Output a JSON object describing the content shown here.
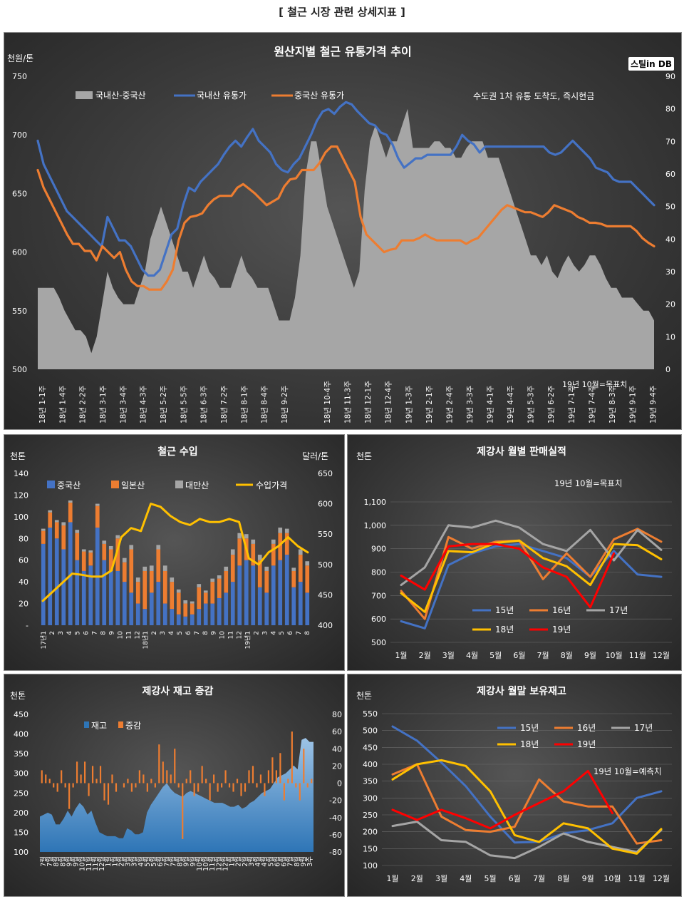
{
  "page_title": "[ 철근 시장 관련 상세지표 ]",
  "chart_data": [
    {
      "id": "c1",
      "type": "line",
      "title": "원산지별 철근 유통가격 추이",
      "brand": "스틸in DB",
      "note": "수도권 1차 유통 도착도, 즉시현금",
      "annotation": "19년 10월=목표치",
      "ylabel_left": "천원/톤",
      "ylim_left": [
        500,
        750
      ],
      "yticks_left": [
        500,
        550,
        600,
        650,
        700,
        750
      ],
      "ylim_right": [
        0,
        90
      ],
      "yticks_right": [
        0,
        10,
        20,
        30,
        40,
        50,
        60,
        70,
        80,
        90
      ],
      "x_tick_labels": [
        "18년 1-1주",
        "18년 1-4주",
        "18년 2-2주",
        "18년 3-1주",
        "18년 3-4주",
        "18년 4-3주",
        "18년 5-2주",
        "18년 5-5주",
        "18년 6-3주",
        "18년 7-2주",
        "18년 8-1주",
        "18년 8-4주",
        "18년 9-2주",
        "18년 10-4주",
        "18년 11-3주",
        "18년 12-1주",
        "18년 12-4주",
        "19년 1-3주",
        "19년 2-1주",
        "19년 2-4주",
        "19년 3-3주",
        "19년 4-1주",
        "19년 4-4주",
        "19년 5-3주",
        "19년 6-2주",
        "19년 7-1주",
        "19년 7-4주",
        "19년 8-3주",
        "19년 9-1주",
        "19년 9-4주"
      ],
      "series": [
        {
          "name": "국내산-중국산",
          "type": "area",
          "axis": "right",
          "color": "#a6a6a6",
          "values": [
            25,
            25,
            25,
            25,
            22,
            18,
            15,
            12,
            12,
            10,
            5,
            10,
            20,
            30,
            25,
            22,
            20,
            20,
            20,
            25,
            30,
            40,
            45,
            50,
            45,
            40,
            35,
            30,
            30,
            25,
            30,
            35,
            30,
            28,
            25,
            25,
            25,
            30,
            35,
            30,
            28,
            25,
            25,
            25,
            20,
            15,
            15,
            15,
            22,
            35,
            60,
            70,
            70,
            60,
            50,
            45,
            40,
            35,
            30,
            25,
            30,
            55,
            70,
            75,
            70,
            65,
            70,
            70,
            75,
            80,
            68,
            68,
            68,
            68,
            70,
            70,
            68,
            68,
            65,
            65,
            68,
            70,
            70,
            70,
            65,
            65,
            65,
            60,
            55,
            50,
            45,
            40,
            35,
            35,
            32,
            35,
            30,
            28,
            32,
            35,
            32,
            30,
            32,
            35,
            35,
            32,
            28,
            25,
            25,
            22,
            22,
            22,
            20,
            18,
            18,
            15
          ]
        },
        {
          "name": "국내산 유통가",
          "type": "line",
          "axis": "left",
          "color": "#4472c4",
          "values": [
            695,
            675,
            665,
            655,
            645,
            635,
            630,
            625,
            620,
            615,
            610,
            605,
            630,
            620,
            610,
            610,
            605,
            595,
            585,
            580,
            580,
            585,
            600,
            615,
            620,
            640,
            655,
            652,
            660,
            665,
            670,
            675,
            683,
            690,
            695,
            690,
            698,
            705,
            695,
            690,
            685,
            675,
            670,
            668,
            675,
            680,
            690,
            700,
            712,
            720,
            722,
            718,
            724,
            728,
            726,
            720,
            715,
            710,
            708,
            702,
            700,
            692,
            680,
            672,
            676,
            680,
            680,
            683,
            683,
            683,
            683,
            683,
            690,
            700,
            695,
            692,
            685,
            690,
            690,
            690,
            690,
            690,
            690,
            690,
            690,
            690,
            690,
            690,
            685,
            683,
            685,
            690,
            695,
            690,
            685,
            680,
            672,
            670,
            668,
            662,
            660,
            660,
            660,
            655,
            650,
            645,
            640
          ]
        },
        {
          "name": "중국산 유통가",
          "type": "line",
          "axis": "left",
          "color": "#ed7d31",
          "values": [
            670,
            655,
            645,
            635,
            625,
            615,
            607,
            607,
            601,
            601,
            593,
            605,
            600,
            595,
            600,
            585,
            575,
            571,
            571,
            568,
            568,
            568,
            575,
            585,
            610,
            625,
            630,
            631,
            633,
            640,
            645,
            648,
            648,
            648,
            655,
            658,
            654,
            650,
            645,
            640,
            643,
            646,
            656,
            662,
            663,
            670,
            670,
            670,
            676,
            685,
            690,
            690,
            680,
            670,
            660,
            630,
            615,
            610,
            605,
            600,
            602,
            603,
            610,
            610,
            610,
            612,
            615,
            612,
            610,
            610,
            610,
            610,
            610,
            607,
            610,
            612,
            618,
            624,
            630,
            636,
            640,
            638,
            636,
            634,
            634,
            632,
            630,
            634,
            640,
            638,
            636,
            634,
            630,
            628,
            625,
            625,
            624,
            622,
            622,
            622,
            622,
            622,
            618,
            612,
            608,
            605
          ]
        }
      ]
    },
    {
      "id": "c2",
      "type": "bar",
      "title": "철근 수입",
      "ylabel_left": "천톤",
      "ylabel_right": "달러/톤",
      "ylim_left": [
        0,
        140
      ],
      "yticks_left": [
        "-",
        "20",
        "40",
        "60",
        "80",
        "100",
        "120",
        "140"
      ],
      "ylim_right": [
        400,
        650
      ],
      "yticks_right": [
        400,
        450,
        500,
        550,
        600,
        650
      ],
      "x_tick_labels": [
        "17년1",
        "2",
        "3",
        "4",
        "5",
        "6",
        "7",
        "8",
        "9",
        "10",
        "11",
        "12",
        "18년1",
        "2",
        "3",
        "4",
        "5",
        "6",
        "7",
        "8",
        "9",
        "10",
        "11",
        "12",
        "19년1",
        "2",
        "3",
        "4",
        "5",
        "6",
        "7",
        "8"
      ],
      "series": [
        {
          "name": "중국산",
          "color": "#4472c4",
          "values": [
            75,
            90,
            80,
            70,
            95,
            60,
            50,
            55,
            90,
            60,
            50,
            50,
            40,
            30,
            20,
            15,
            30,
            40,
            20,
            15,
            10,
            8,
            10,
            15,
            20,
            20,
            25,
            30,
            40,
            55,
            60,
            55,
            35,
            30,
            55,
            60,
            65,
            35,
            40,
            30
          ]
        },
        {
          "name": "일본산",
          "color": "#ed7d31",
          "values": [
            12,
            14,
            15,
            22,
            18,
            25,
            18,
            12,
            20,
            15,
            20,
            30,
            18,
            40,
            20,
            35,
            20,
            30,
            30,
            25,
            20,
            12,
            10,
            20,
            10,
            20,
            18,
            20,
            25,
            25,
            20,
            20,
            25,
            20,
            20,
            25,
            20,
            15,
            25,
            25
          ]
        },
        {
          "name": "대만산",
          "color": "#a5a5a5",
          "values": [
            2,
            2,
            2,
            3,
            2,
            3,
            2,
            2,
            2,
            3,
            3,
            3,
            4,
            4,
            4,
            4,
            5,
            4,
            5,
            4,
            3,
            3,
            2,
            3,
            2,
            3,
            3,
            4,
            5,
            5,
            4,
            4,
            5,
            4,
            4,
            5,
            4,
            3,
            5,
            4
          ]
        },
        {
          "name": "수입가격",
          "color": "#ffc000",
          "type": "line",
          "axis": "right",
          "values": [
            440,
            455,
            470,
            485,
            483,
            480,
            480,
            490,
            545,
            560,
            555,
            600,
            595,
            580,
            570,
            565,
            575,
            570,
            570,
            575,
            570,
            510,
            500,
            520,
            530,
            545,
            530,
            520
          ]
        }
      ]
    },
    {
      "id": "c3",
      "type": "line",
      "title": "제강사 월별 판매실적",
      "annotation": "19년 10월=목표치",
      "ylabel": "천톤",
      "ylim": [
        500,
        1100
      ],
      "yticks": [
        "500",
        "600",
        "700",
        "800",
        "900",
        "1,000",
        "1,100"
      ],
      "categories": [
        "1월",
        "2월",
        "3월",
        "4월",
        "5월",
        "6월",
        "7월",
        "8월",
        "9월",
        "10월",
        "11월",
        "12월"
      ],
      "series": [
        {
          "name": "15년",
          "color": "#4472c4",
          "values": [
            590,
            560,
            830,
            880,
            910,
            920,
            890,
            860,
            780,
            890,
            790,
            780
          ]
        },
        {
          "name": "16년",
          "color": "#ed7d31",
          "values": [
            720,
            600,
            950,
            900,
            930,
            935,
            770,
            880,
            780,
            940,
            985,
            930
          ]
        },
        {
          "name": "17년",
          "color": "#a5a5a5",
          "values": [
            745,
            820,
            1000,
            990,
            1020,
            990,
            920,
            890,
            980,
            850,
            980,
            895
          ]
        },
        {
          "name": "18년",
          "color": "#ffc000",
          "values": [
            710,
            630,
            890,
            885,
            925,
            935,
            860,
            825,
            745,
            920,
            915,
            855
          ]
        },
        {
          "name": "19년",
          "color": "#ff0000",
          "values": [
            785,
            725,
            910,
            920,
            920,
            900,
            820,
            780,
            650,
            880,
            null,
            null
          ]
        }
      ]
    },
    {
      "id": "c4",
      "type": "area",
      "title": "제강사 재고 증감",
      "ylabel": "천톤",
      "ylim_left": [
        100,
        450
      ],
      "yticks_left": [
        100,
        150,
        200,
        250,
        300,
        350,
        400,
        450
      ],
      "ylim_right": [
        -80,
        80
      ],
      "yticks_right": [
        -80,
        -60,
        -40,
        -20,
        0,
        20,
        40,
        60,
        80
      ],
      "x_tick_labels": [
        "7월",
        "7월",
        "8월",
        "8월",
        "9월",
        "9월",
        "10월",
        "11월",
        "11월",
        "12월",
        "1월",
        "1월",
        "2월",
        "3월",
        "3월",
        "4월",
        "5월",
        "5월",
        "6월",
        "7월",
        "7월",
        "8월",
        "9월",
        "9월",
        "10월",
        "10월",
        "11월",
        "12월",
        "12월",
        "1월",
        "2월",
        "2월",
        "3월",
        "4월",
        "4월",
        "5월",
        "6월",
        "6월",
        "7월",
        "8월",
        "9월",
        "3주"
      ],
      "series": [
        {
          "name": "재고",
          "color": "#2e75b6",
          "values": [
            190,
            195,
            200,
            195,
            170,
            170,
            185,
            205,
            190,
            210,
            225,
            215,
            195,
            205,
            175,
            150,
            145,
            140,
            140,
            140,
            135,
            135,
            160,
            155,
            145,
            145,
            150,
            200,
            220,
            235,
            250,
            265,
            275,
            260,
            250,
            245,
            240,
            250,
            255,
            250,
            245,
            240,
            235,
            230,
            225,
            225,
            225,
            220,
            215,
            215,
            220,
            210,
            215,
            225,
            230,
            240,
            250,
            255,
            260,
            275,
            290,
            295,
            300,
            310,
            320,
            310,
            385,
            390,
            380,
            380
          ]
        },
        {
          "name": "증감",
          "color": "#ed7d31",
          "values": [
            15,
            10,
            5,
            -5,
            -10,
            15,
            -5,
            -30,
            -5,
            25,
            10,
            25,
            -15,
            20,
            5,
            20,
            -20,
            -25,
            10,
            -10,
            0,
            -5,
            5,
            -10,
            -5,
            15,
            10,
            -10,
            5,
            -5,
            45,
            25,
            15,
            10,
            40,
            -5,
            -65,
            5,
            15,
            -15,
            -10,
            20,
            5,
            -20,
            10,
            -10,
            -5,
            15,
            -5,
            -10,
            5,
            -15,
            -10,
            15,
            20,
            -5,
            10,
            -15,
            15,
            30,
            15,
            35,
            -20,
            5,
            60,
            -5,
            -20,
            40,
            -5,
            5
          ]
        }
      ]
    },
    {
      "id": "c5",
      "type": "line",
      "title": "제강사 월말 보유재고",
      "annotation": "19년 10월=예측치",
      "ylabel": "천톤",
      "ylim": [
        100,
        550
      ],
      "yticks": [
        100,
        150,
        200,
        250,
        300,
        350,
        400,
        450,
        500,
        550
      ],
      "categories": [
        "1월",
        "2월",
        "3월",
        "4월",
        "5월",
        "6월",
        "7월",
        "8월",
        "9월",
        "10월",
        "11월",
        "12월"
      ],
      "series": [
        {
          "name": "15년",
          "color": "#4472c4",
          "values": [
            512,
            470,
            405,
            335,
            245,
            168,
            170,
            195,
            205,
            225,
            300,
            320
          ]
        },
        {
          "name": "16년",
          "color": "#ed7d31",
          "values": [
            370,
            400,
            245,
            205,
            200,
            215,
            355,
            290,
            275,
            275,
            165,
            175
          ]
        },
        {
          "name": "17년",
          "color": "#a5a5a5",
          "values": [
            217,
            230,
            175,
            170,
            130,
            122,
            155,
            195,
            170,
            155,
            140,
            205
          ]
        },
        {
          "name": "18년",
          "color": "#ffc000",
          "values": [
            355,
            400,
            412,
            395,
            320,
            190,
            170,
            225,
            210,
            150,
            135,
            208
          ]
        },
        {
          "name": "19년",
          "color": "#ff0000",
          "values": [
            265,
            235,
            265,
            240,
            210,
            250,
            285,
            320,
            380,
            255,
            null,
            null
          ]
        }
      ]
    }
  ]
}
